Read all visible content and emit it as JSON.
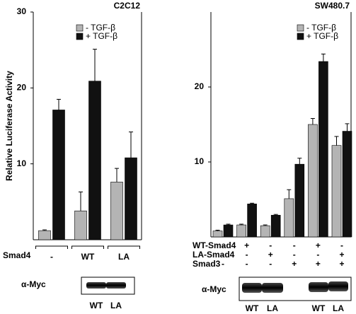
{
  "chart_data": [
    {
      "type": "bar",
      "title": "C2C12",
      "ylabel": "Relative Luciferase Activity",
      "xlabel": "Smad4",
      "categories": [
        "-",
        "WT",
        "LA"
      ],
      "series": [
        {
          "name": "- TGF-β",
          "color": "#b4b4b4",
          "values": [
            1.2,
            3.8,
            7.6
          ],
          "errors": [
            0.1,
            2.5,
            1.8
          ]
        },
        {
          "name": "+ TGF-β",
          "color": "#111111",
          "values": [
            17.1,
            20.9,
            10.8
          ],
          "errors": [
            1.4,
            4.2,
            3.4
          ]
        }
      ],
      "ylim": [
        0,
        30
      ],
      "yticks": [
        10,
        20,
        30
      ],
      "grid": false
    },
    {
      "type": "bar",
      "title": "SW480.7",
      "conditions": [
        {
          "name": "WT-Smad4",
          "values": [
            "-",
            "+",
            "-",
            "-",
            "+",
            "-"
          ]
        },
        {
          "name": "LA-Smad4",
          "values": [
            "-",
            "-",
            "+",
            "-",
            "-",
            "+"
          ]
        },
        {
          "name": "Smad3",
          "values": [
            "-",
            "-",
            "-",
            "+",
            "+",
            "+"
          ]
        }
      ],
      "series": [
        {
          "name": "- TGF-β",
          "color": "#b4b4b4",
          "values": [
            0.8,
            1.6,
            1.5,
            5.1,
            15.0,
            12.2
          ],
          "errors": [
            0.1,
            0.1,
            0.1,
            1.2,
            0.8,
            1.2
          ]
        },
        {
          "name": "+ TGF-β",
          "color": "#111111",
          "values": [
            1.6,
            4.4,
            2.9,
            9.7,
            23.4,
            14.1
          ],
          "errors": [
            0.1,
            0.1,
            0.1,
            0.8,
            1.0,
            1.0
          ]
        }
      ],
      "ylim": [
        0,
        30
      ],
      "yticks": [
        10,
        20
      ],
      "grid": false
    }
  ],
  "blots": [
    {
      "label": "α-Myc",
      "lanes": [
        "WT",
        "LA"
      ]
    },
    {
      "label": "α-Myc",
      "lanes": [
        "WT",
        "LA",
        "WT",
        "LA"
      ]
    }
  ]
}
